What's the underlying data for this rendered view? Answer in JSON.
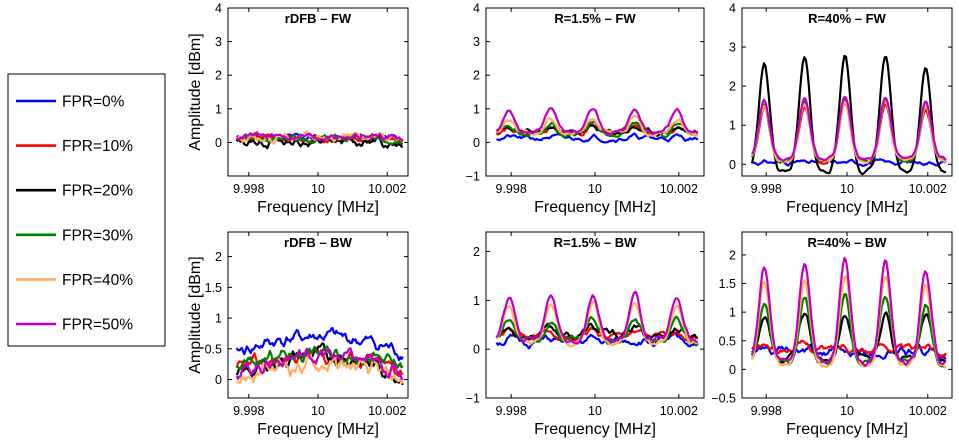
{
  "legend": {
    "entries": [
      {
        "label": "FPR=0%",
        "color": "#0000ff"
      },
      {
        "label": "FPR=10%",
        "color": "#ff0000"
      },
      {
        "label": "FPR=20%",
        "color": "#000000"
      },
      {
        "label": "FPR=30%",
        "color": "#008000"
      },
      {
        "label": "FPR=40%",
        "color": "#ffb060"
      },
      {
        "label": "FPR=50%",
        "color": "#c000c0"
      }
    ]
  },
  "chart_data": [
    {
      "type": "line",
      "title": "rDFB – FW",
      "xlabel": "Frequency [MHz]",
      "ylabel": "Amplitude [dBm]",
      "xlim": [
        9.9974,
        10.0026
      ],
      "ylim": [
        -1,
        4
      ],
      "xticks": [
        9.998,
        10,
        10.002
      ],
      "xticklabels": [
        "9.998",
        "10",
        "10.002"
      ],
      "yticks": [
        0,
        1,
        2,
        3,
        4
      ],
      "yticklabels": [
        "0",
        "1",
        "2",
        "3",
        "4"
      ],
      "series": [
        {
          "name": "FPR=0%",
          "base": 0.15,
          "drift": 0.0,
          "amp": 0.0,
          "noise": 0.1,
          "seed": 11
        },
        {
          "name": "FPR=10%",
          "base": 0.1,
          "drift": 0.0,
          "amp": 0.0,
          "noise": 0.1,
          "seed": 12
        },
        {
          "name": "FPR=20%",
          "base": 0.02,
          "drift": 0.0,
          "amp": 0.0,
          "noise": 0.14,
          "seed": 13
        },
        {
          "name": "FPR=30%",
          "base": 0.1,
          "drift": 0.0,
          "amp": 0.0,
          "noise": 0.1,
          "seed": 14
        },
        {
          "name": "FPR=40%",
          "base": 0.15,
          "drift": 0.0,
          "amp": 0.0,
          "noise": 0.12,
          "seed": 15
        },
        {
          "name": "FPR=50%",
          "base": 0.18,
          "drift": 0.0,
          "amp": 0.0,
          "noise": 0.1,
          "seed": 16
        }
      ]
    },
    {
      "type": "line",
      "title": "R=1.5% – FW",
      "xlabel": "Frequency [MHz]",
      "ylabel": "",
      "xlim": [
        9.9974,
        10.0026
      ],
      "ylim": [
        -1,
        4
      ],
      "xticks": [
        9.998,
        10,
        10.002
      ],
      "xticklabels": [
        "9.998",
        "10",
        "10.002"
      ],
      "yticks": [
        -1,
        0,
        1,
        2,
        3,
        4
      ],
      "yticklabels": [
        "−1",
        "0",
        "1",
        "2",
        "3",
        "4"
      ],
      "series": [
        {
          "name": "FPR=0%",
          "base": 0.12,
          "drift": 0.0,
          "amp": 0.05,
          "noise": 0.08,
          "seed": 21
        },
        {
          "name": "FPR=10%",
          "base": 0.3,
          "drift": 0.0,
          "amp": 0.2,
          "noise": 0.08,
          "seed": 22
        },
        {
          "name": "FPR=20%",
          "base": 0.3,
          "drift": 0.0,
          "amp": 0.15,
          "noise": 0.08,
          "seed": 23
        },
        {
          "name": "FPR=30%",
          "base": 0.25,
          "drift": 0.0,
          "amp": 0.35,
          "noise": 0.08,
          "seed": 24
        },
        {
          "name": "FPR=40%",
          "base": 0.3,
          "drift": 0.0,
          "amp": 0.5,
          "noise": 0.08,
          "seed": 25
        },
        {
          "name": "FPR=50%",
          "base": 0.35,
          "drift": 0.0,
          "amp": 0.75,
          "noise": 0.06,
          "seed": 26
        }
      ]
    },
    {
      "type": "line",
      "title": "R=40% – FW",
      "xlabel": "Frequency [MHz]",
      "ylabel": "",
      "xlim": [
        9.9974,
        10.0026
      ],
      "ylim": [
        -0.3,
        4
      ],
      "xticks": [
        9.998,
        10,
        10.002
      ],
      "xticklabels": [
        "9.998",
        "10",
        "10.002"
      ],
      "yticks": [
        0,
        1,
        2,
        3,
        4
      ],
      "yticklabels": [
        "0",
        "1",
        "2",
        "3",
        "4"
      ],
      "series": [
        {
          "name": "FPR=0%",
          "base": 0.05,
          "drift": 0.0,
          "amp": 0.0,
          "noise": 0.06,
          "seed": 31
        },
        {
          "name": "FPR=10%",
          "base": 0.2,
          "drift": 0.0,
          "amp": 1.5,
          "noise": 0.05,
          "seed": 32
        },
        {
          "name": "FPR=20%",
          "base": 0.05,
          "drift": 0.0,
          "amp": 3.0,
          "noise": 0.06,
          "seed": 33
        },
        {
          "name": "FPR=30%",
          "base": 0.2,
          "drift": 0.0,
          "amp": 1.6,
          "noise": 0.05,
          "seed": 34
        },
        {
          "name": "FPR=40%",
          "base": 0.2,
          "drift": 0.0,
          "amp": 1.55,
          "noise": 0.05,
          "seed": 35
        },
        {
          "name": "FPR=50%",
          "base": 0.25,
          "drift": 0.0,
          "amp": 1.6,
          "noise": 0.05,
          "seed": 36
        }
      ]
    },
    {
      "type": "line",
      "title": "rDFB – BW",
      "xlabel": "Frequency [MHz]",
      "ylabel": "Amplitude [dBm]",
      "xlim": [
        9.9974,
        10.0026
      ],
      "ylim": [
        -0.3,
        2.4
      ],
      "xticks": [
        9.998,
        10,
        10.002
      ],
      "xticklabels": [
        "9.998",
        "10",
        "10.002"
      ],
      "yticks": [
        0,
        0.5,
        1,
        1.5,
        2
      ],
      "yticklabels": [
        "0",
        "0.5",
        "1",
        "1.5",
        "2"
      ],
      "series": [
        {
          "name": "FPR=0%",
          "base": 0.45,
          "drift": 0.25,
          "amp": 0.0,
          "noise": 0.12,
          "seed": 41
        },
        {
          "name": "FPR=10%",
          "base": 0.15,
          "drift": 0.25,
          "amp": 0.0,
          "noise": 0.12,
          "seed": 42
        },
        {
          "name": "FPR=20%",
          "base": 0.05,
          "drift": 0.35,
          "amp": 0.0,
          "noise": 0.12,
          "seed": 43
        },
        {
          "name": "FPR=30%",
          "base": 0.2,
          "drift": 0.25,
          "amp": 0.0,
          "noise": 0.12,
          "seed": 44
        },
        {
          "name": "FPR=40%",
          "base": 0.0,
          "drift": 0.25,
          "amp": 0.0,
          "noise": 0.14,
          "seed": 45
        },
        {
          "name": "FPR=50%",
          "base": 0.1,
          "drift": 0.3,
          "amp": 0.0,
          "noise": 0.12,
          "seed": 46
        }
      ]
    },
    {
      "type": "line",
      "title": "R=1.5% – BW",
      "xlabel": "Frequency [MHz]",
      "ylabel": "",
      "xlim": [
        9.9974,
        10.0026
      ],
      "ylim": [
        -1,
        2.4
      ],
      "xticks": [
        9.998,
        10,
        10.002
      ],
      "xticklabels": [
        "9.998",
        "10",
        "10.002"
      ],
      "yticks": [
        -1,
        0,
        1,
        2
      ],
      "yticklabels": [
        "−1",
        "0",
        "1",
        "2"
      ],
      "series": [
        {
          "name": "FPR=0%",
          "base": 0.15,
          "drift": 0.0,
          "amp": 0.05,
          "noise": 0.1,
          "seed": 51
        },
        {
          "name": "FPR=10%",
          "base": 0.25,
          "drift": 0.0,
          "amp": 0.15,
          "noise": 0.08,
          "seed": 52
        },
        {
          "name": "FPR=20%",
          "base": 0.3,
          "drift": 0.0,
          "amp": 0.15,
          "noise": 0.1,
          "seed": 53
        },
        {
          "name": "FPR=30%",
          "base": 0.2,
          "drift": 0.0,
          "amp": 0.45,
          "noise": 0.08,
          "seed": 54
        },
        {
          "name": "FPR=40%",
          "base": 0.2,
          "drift": 0.0,
          "amp": 0.85,
          "noise": 0.06,
          "seed": 55
        },
        {
          "name": "FPR=50%",
          "base": 0.25,
          "drift": 0.0,
          "amp": 0.95,
          "noise": 0.06,
          "seed": 56
        }
      ]
    },
    {
      "type": "line",
      "title": "R=40% – BW",
      "xlabel": "Frequency [MHz]",
      "ylabel": "",
      "xlim": [
        9.9974,
        10.0026
      ],
      "ylim": [
        -0.5,
        2.4
      ],
      "xticks": [
        9.998,
        10,
        10.002
      ],
      "xticklabels": [
        "9.998",
        "10",
        "10.002"
      ],
      "yticks": [
        -0.5,
        0,
        0.5,
        1,
        1.5,
        2
      ],
      "yticklabels": [
        "−0.5",
        "0",
        "0.5",
        "1",
        "1.5",
        "2"
      ],
      "series": [
        {
          "name": "FPR=0%",
          "base": 0.3,
          "drift": 0.0,
          "amp": 0.0,
          "noise": 0.1,
          "seed": 61
        },
        {
          "name": "FPR=10%",
          "base": 0.35,
          "drift": 0.0,
          "amp": 0.1,
          "noise": 0.08,
          "seed": 62
        },
        {
          "name": "FPR=20%",
          "base": 0.25,
          "drift": 0.0,
          "amp": 0.8,
          "noise": 0.06,
          "seed": 63
        },
        {
          "name": "FPR=30%",
          "base": 0.2,
          "drift": 0.0,
          "amp": 1.2,
          "noise": 0.06,
          "seed": 64
        },
        {
          "name": "FPR=40%",
          "base": 0.2,
          "drift": 0.0,
          "amp": 1.6,
          "noise": 0.05,
          "seed": 65
        },
        {
          "name": "FPR=50%",
          "base": 0.25,
          "drift": 0.0,
          "amp": 1.8,
          "noise": 0.05,
          "seed": 66
        }
      ]
    }
  ]
}
